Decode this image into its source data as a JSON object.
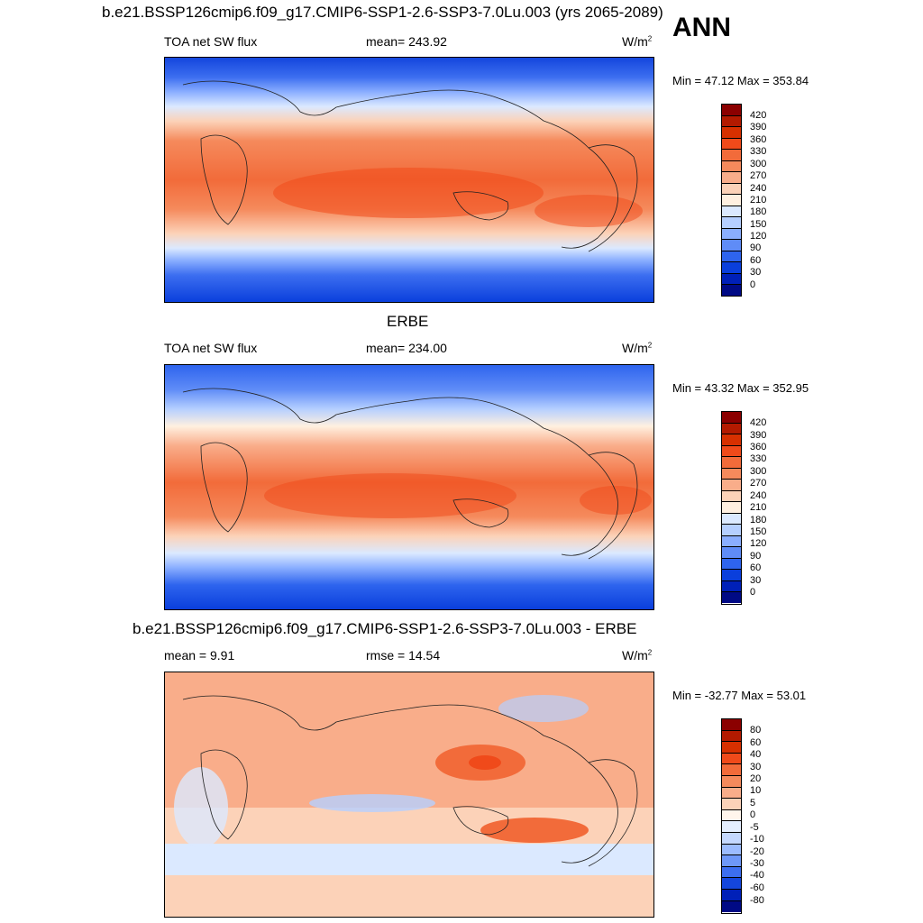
{
  "annotation": "ANN",
  "panels": [
    {
      "title": "b.e21.BSSP126cmip6.f09_g17.CMIP6-SSP1-2.6-SSP3-7.0Lu.003 (yrs 2065-2089)",
      "left_label": "TOA net SW flux",
      "center_label": "mean= 243.92",
      "units": "W/m",
      "units_sup": "2",
      "minmax": "Min =  47.12 Max = 353.84",
      "colorbar_labels": [
        "420",
        "390",
        "360",
        "330",
        "300",
        "270",
        "240",
        "210",
        "180",
        "150",
        "120",
        "90",
        "60",
        "30",
        "0"
      ]
    },
    {
      "title": "ERBE",
      "left_label": "TOA net SW flux",
      "center_label": "mean= 234.00",
      "units": "W/m",
      "units_sup": "2",
      "minmax": "Min =  43.32 Max = 352.95",
      "colorbar_labels": [
        "420",
        "390",
        "360",
        "330",
        "300",
        "270",
        "240",
        "210",
        "180",
        "150",
        "120",
        "90",
        "60",
        "30",
        "0"
      ]
    },
    {
      "title": "b.e21.BSSP126cmip6.f09_g17.CMIP6-SSP1-2.6-SSP3-7.0Lu.003 - ERBE",
      "left_label": "mean =   9.91",
      "center_label": "rmse =  14.54",
      "units": "W/m",
      "units_sup": "2",
      "minmax": "Min = -32.77 Max =  53.01",
      "colorbar_labels": [
        "80",
        "60",
        "40",
        "30",
        "20",
        "10",
        "5",
        "0",
        "-5",
        "-10",
        "-20",
        "-30",
        "-40",
        "-60",
        "-80"
      ]
    }
  ],
  "colors": {
    "abs_scale": [
      "#8b0000",
      "#b31a00",
      "#d73000",
      "#f04a1a",
      "#f26b3a",
      "#f58a5c",
      "#f9ad8a",
      "#fcd2b8",
      "#fff0e0",
      "#dbe9ff",
      "#b5cfff",
      "#8aaeff",
      "#5f8cf7",
      "#2e64ee",
      "#0a3fdc",
      "#0020b8",
      "#000a85"
    ],
    "diff_scale": [
      "#8b0000",
      "#b31a00",
      "#d73000",
      "#f04a1a",
      "#f26b3a",
      "#f58a5c",
      "#f9ad8a",
      "#fcd2b8",
      "#fff5ec",
      "#e4eeff",
      "#c4d8ff",
      "#9cbcff",
      "#6e98f8",
      "#3c6ef0",
      "#1446dd",
      "#0020b8",
      "#000a85"
    ]
  }
}
